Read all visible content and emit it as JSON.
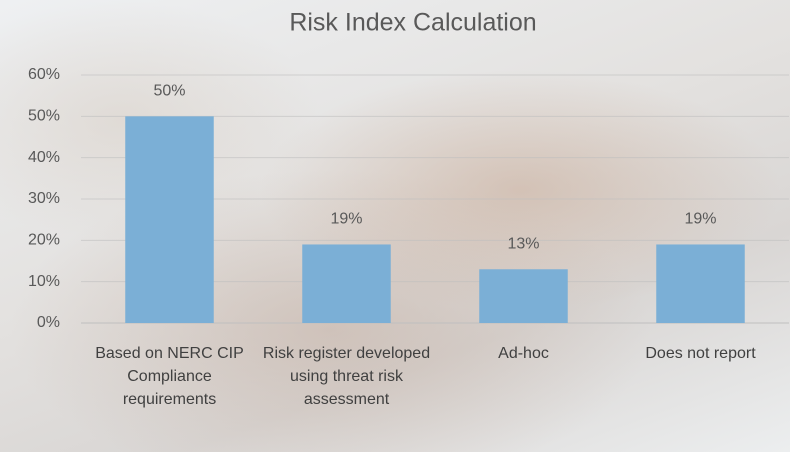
{
  "chart_data": {
    "type": "bar",
    "title": "Risk Index Calculation",
    "categories": [
      "Based on NERC CIP Compliance requirements",
      "Risk register developed using threat risk assessment",
      "Ad-hoc",
      "Does not report"
    ],
    "values": [
      50,
      19,
      13,
      19
    ],
    "value_labels": [
      "50%",
      "19%",
      "13%",
      "19%"
    ],
    "color": "#7bafd6",
    "ylim": [
      0,
      60
    ],
    "yticks": [
      {
        "value": 0,
        "label": "0%"
      },
      {
        "value": 10,
        "label": "10%"
      },
      {
        "value": 20,
        "label": "20%"
      },
      {
        "value": 30,
        "label": "30%"
      },
      {
        "value": 40,
        "label": "40%"
      },
      {
        "value": 50,
        "label": "50%"
      },
      {
        "value": 60,
        "label": "60%"
      }
    ],
    "grid": true
  }
}
